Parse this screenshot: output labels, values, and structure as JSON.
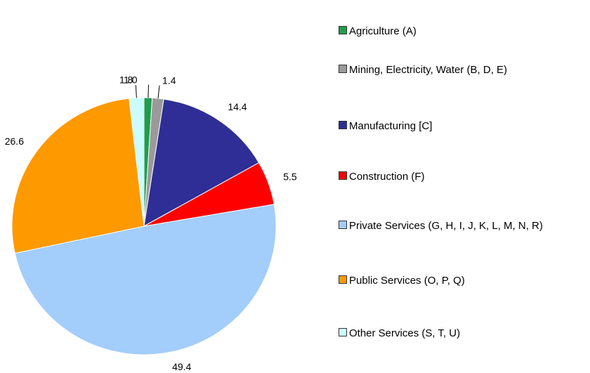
{
  "chart_data": {
    "type": "pie",
    "categories": [
      "Agriculture (A)",
      "Mining, Electricity, Water (B, D, E)",
      "Manufacturing [C]",
      "Construction (F)",
      "Private Services (G, H, I, J, K, L, M, N, R)",
      "Public Services (O, P, Q)",
      "Other Services (S, T, U)"
    ],
    "values": [
      1.0,
      1.4,
      14.4,
      5.5,
      49.4,
      26.6,
      1.8
    ],
    "value_labels": [
      "1.0",
      "1.4",
      "14.4",
      "5.5",
      "49.4",
      "26.6",
      "1.8"
    ],
    "colors": [
      "#1e9e4e",
      "#9a9a9a",
      "#2e2e96",
      "#ff0000",
      "#a3cdfb",
      "#ff9900",
      "#ccfcfc"
    ],
    "legend": "right"
  }
}
